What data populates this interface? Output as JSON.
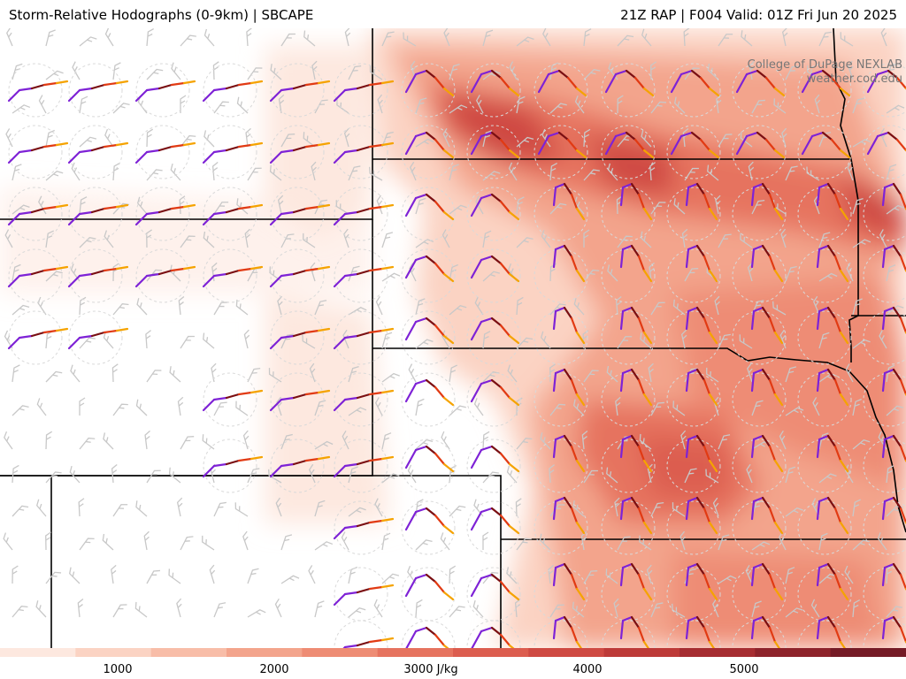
{
  "header": {
    "title": "Storm-Relative Hodographs (0-9km) | SBCAPE",
    "valid": "21Z RAP | F004 Valid: 01Z Fri Jun 20 2025"
  },
  "credit": {
    "line1": "College of DuPage NEXLAB",
    "line2": "weather.cod.edu"
  },
  "colorbar": {
    "unit": "J/kg",
    "labels": [
      "1000",
      "2000",
      "3000 J/kg",
      "4000",
      "5000"
    ],
    "colors": [
      "#fde8df",
      "#fbd3c3",
      "#f8bda8",
      "#f3a48c",
      "#ee8c74",
      "#e6735f",
      "#dc5d4f",
      "#cf4a43",
      "#bd3a38",
      "#a62d31",
      "#8e232b",
      "#751b26"
    ]
  },
  "legend_colors": {
    "hodo_low": "#7e22d6",
    "hodo_mid_low": "#7a0f12",
    "hodo_mid": "#e13a13",
    "hodo_high": "#f5a300",
    "barb": "#bbbbbb",
    "borders": "#000000"
  }
}
